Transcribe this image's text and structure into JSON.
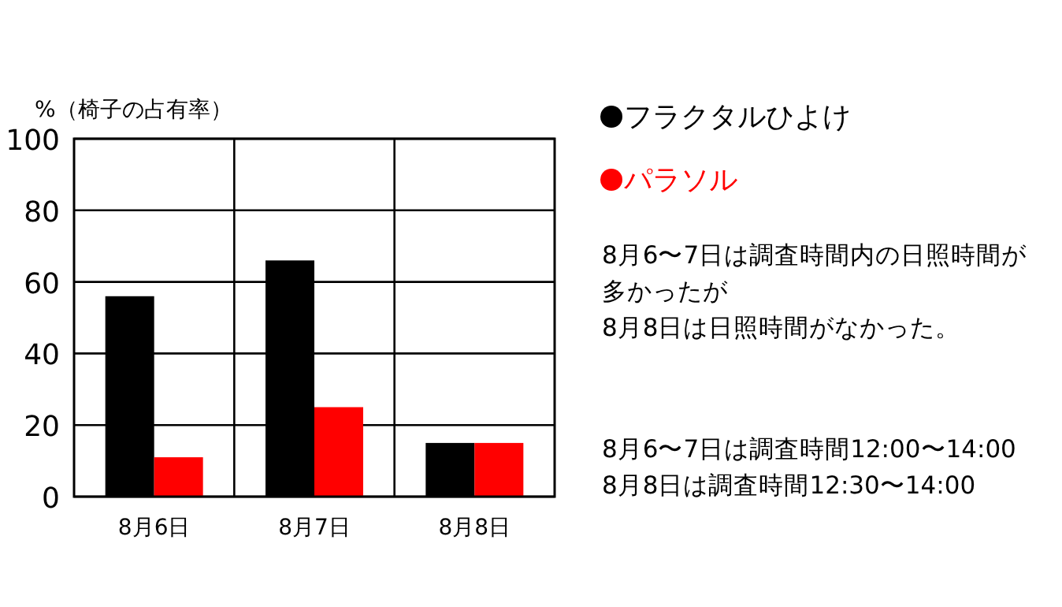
{
  "chart_data": {
    "type": "bar",
    "ylabel": "%（椅子の占有率）",
    "categories": [
      "8月6日",
      "8月7日",
      "8月8日"
    ],
    "series": [
      {
        "name": "フラクタルひよけ",
        "color": "#000000",
        "values": [
          56,
          66,
          15
        ]
      },
      {
        "name": "パラソル",
        "color": "#ff0000",
        "values": [
          11,
          25,
          15
        ]
      }
    ],
    "ylim": [
      0,
      100
    ],
    "yticks": [
      0,
      20,
      40,
      60,
      80,
      100
    ],
    "grid": true,
    "legend": "right",
    "annotations": [
      "8月6〜7日は調査時間内の日照時間が",
      "多かったが",
      "8月8日は日照時間がなかった。",
      "8月6〜7日は調査時間12:00〜14:00",
      "8月8日は調査時間12:30〜14:00"
    ]
  }
}
